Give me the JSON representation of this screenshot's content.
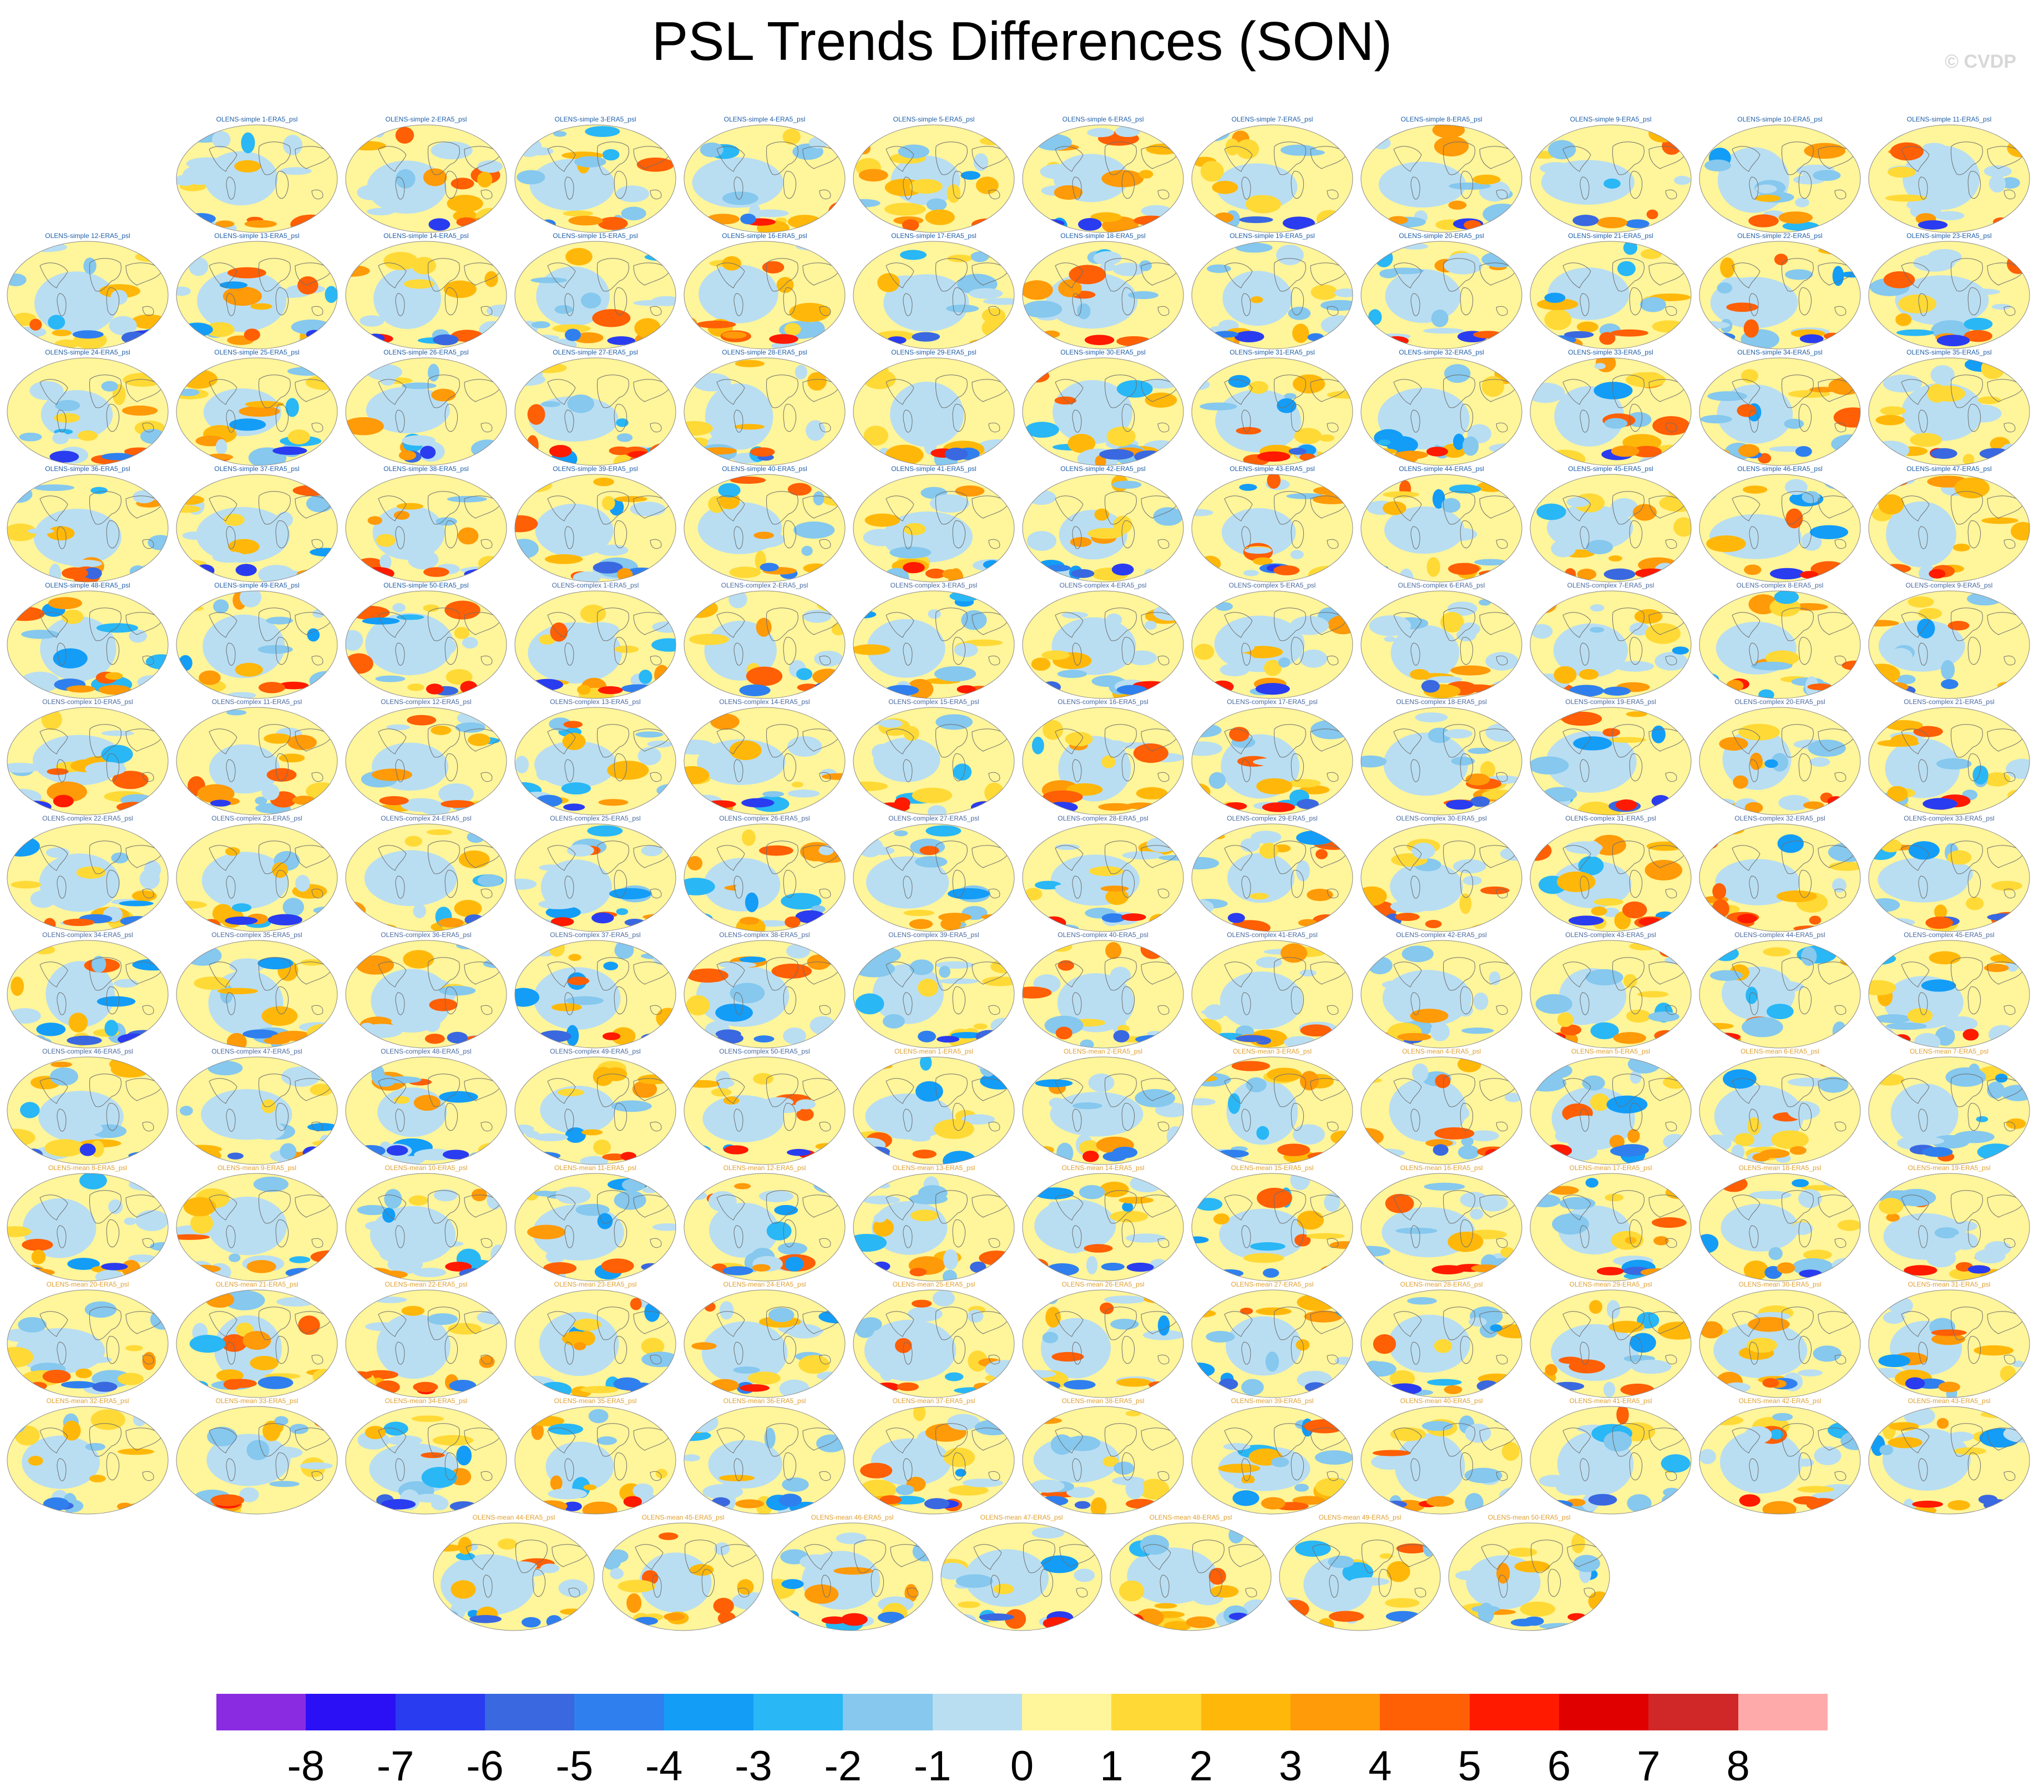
{
  "title": "PSL Trends Differences (SON)",
  "copyright": "© CVDP",
  "panel_titles": [
    "OLENS-simple 1-ERA5_psl",
    "OLENS-simple 2-ERA5_psl",
    "OLENS-simple 3-ERA5_psl",
    "OLENS-simple 4-ERA5_psl",
    "OLENS-simple 5-ERA5_psl",
    "OLENS-simple 6-ERA5_psl",
    "OLENS-simple 7-ERA5_psl",
    "OLENS-simple 8-ERA5_psl",
    "OLENS-simple 9-ERA5_psl",
    "OLENS-simple 10-ERA5_psl",
    "OLENS-simple 11-ERA5_psl",
    "OLENS-simple 12-ERA5_psl",
    "OLENS-simple 13-ERA5_psl",
    "OLENS-simple 14-ERA5_psl",
    "OLENS-simple 15-ERA5_psl",
    "OLENS-simple 16-ERA5_psl",
    "OLENS-simple 17-ERA5_psl",
    "OLENS-simple 18-ERA5_psl",
    "OLENS-simple 19-ERA5_psl",
    "OLENS-simple 20-ERA5_psl",
    "OLENS-simple 21-ERA5_psl",
    "OLENS-simple 22-ERA5_psl",
    "OLENS-simple 23-ERA5_psl",
    "OLENS-simple 24-ERA5_psl",
    "OLENS-simple 25-ERA5_psl",
    "OLENS-simple 26-ERA5_psl",
    "OLENS-simple 27-ERA5_psl",
    "OLENS-simple 28-ERA5_psl",
    "OLENS-simple 29-ERA5_psl",
    "OLENS-simple 30-ERA5_psl",
    "OLENS-simple 31-ERA5_psl",
    "OLENS-simple 32-ERA5_psl",
    "OLENS-simple 33-ERA5_psl",
    "OLENS-simple 34-ERA5_psl",
    "OLENS-simple 35-ERA5_psl",
    "OLENS-simple 36-ERA5_psl",
    "OLENS-simple 37-ERA5_psl",
    "OLENS-simple 38-ERA5_psl",
    "OLENS-simple 39-ERA5_psl",
    "OLENS-simple 40-ERA5_psl",
    "OLENS-simple 41-ERA5_psl",
    "OLENS-simple 42-ERA5_psl",
    "OLENS-simple 43-ERA5_psl",
    "OLENS-simple 44-ERA5_psl",
    "OLENS-simple 45-ERA5_psl",
    "OLENS-simple 46-ERA5_psl",
    "OLENS-simple 47-ERA5_psl",
    "OLENS-simple 48-ERA5_psl",
    "OLENS-simple 49-ERA5_psl",
    "OLENS-simple 50-ERA5_psl",
    "OLENS-complex 1-ERA5_psl",
    "OLENS-complex 2-ERA5_psl",
    "OLENS-complex 3-ERA5_psl",
    "OLENS-complex 4-ERA5_psl",
    "OLENS-complex 5-ERA5_psl",
    "OLENS-complex 6-ERA5_psl",
    "OLENS-complex 7-ERA5_psl",
    "OLENS-complex 8-ERA5_psl",
    "OLENS-complex 9-ERA5_psl",
    "OLENS-complex 10-ERA5_psl",
    "OLENS-complex 11-ERA5_psl",
    "OLENS-complex 12-ERA5_psl",
    "OLENS-complex 13-ERA5_psl",
    "OLENS-complex 14-ERA5_psl",
    "OLENS-complex 15-ERA5_psl",
    "OLENS-complex 16-ERA5_psl",
    "OLENS-complex 17-ERA5_psl",
    "OLENS-complex 18-ERA5_psl",
    "OLENS-complex 19-ERA5_psl",
    "OLENS-complex 20-ERA5_psl",
    "OLENS-complex 21-ERA5_psl",
    "OLENS-complex 22-ERA5_psl",
    "OLENS-complex 23-ERA5_psl",
    "OLENS-complex 24-ERA5_psl",
    "OLENS-complex 25-ERA5_psl",
    "OLENS-complex 26-ERA5_psl",
    "OLENS-complex 27-ERA5_psl",
    "OLENS-complex 28-ERA5_psl",
    "OLENS-complex 29-ERA5_psl",
    "OLENS-complex 30-ERA5_psl",
    "OLENS-complex 31-ERA5_psl",
    "OLENS-complex 32-ERA5_psl",
    "OLENS-complex 33-ERA5_psl",
    "OLENS-complex 34-ERA5_psl",
    "OLENS-complex 35-ERA5_psl",
    "OLENS-complex 36-ERA5_psl",
    "OLENS-complex 37-ERA5_psl",
    "OLENS-complex 38-ERA5_psl",
    "OLENS-complex 39-ERA5_psl",
    "OLENS-complex 40-ERA5_psl",
    "OLENS-complex 41-ERA5_psl",
    "OLENS-complex 42-ERA5_psl",
    "OLENS-complex 43-ERA5_psl",
    "OLENS-complex 44-ERA5_psl",
    "OLENS-complex 45-ERA5_psl",
    "OLENS-complex 46-ERA5_psl",
    "OLENS-complex 47-ERA5_psl",
    "OLENS-complex 48-ERA5_psl",
    "OLENS-complex 49-ERA5_psl",
    "OLENS-complex 50-ERA5_psl",
    "OLENS-mean 1-ERA5_psl",
    "OLENS-mean 2-ERA5_psl",
    "OLENS-mean 3-ERA5_psl",
    "OLENS-mean 4-ERA5_psl",
    "OLENS-mean 5-ERA5_psl",
    "OLENS-mean 6-ERA5_psl",
    "OLENS-mean 7-ERA5_psl",
    "OLENS-mean 8-ERA5_psl",
    "OLENS-mean 9-ERA5_psl",
    "OLENS-mean 10-ERA5_psl",
    "OLENS-mean 11-ERA5_psl",
    "OLENS-mean 12-ERA5_psl",
    "OLENS-mean 13-ERA5_psl",
    "OLENS-mean 14-ERA5_psl",
    "OLENS-mean 15-ERA5_psl",
    "OLENS-mean 16-ERA5_psl",
    "OLENS-mean 17-ERA5_psl",
    "OLENS-mean 18-ERA5_psl",
    "OLENS-mean 19-ERA5_psl",
    "OLENS-mean 20-ERA5_psl",
    "OLENS-mean 21-ERA5_psl",
    "OLENS-mean 22-ERA5_psl",
    "OLENS-mean 23-ERA5_psl",
    "OLENS-mean 24-ERA5_psl",
    "OLENS-mean 25-ERA5_psl",
    "OLENS-mean 26-ERA5_psl",
    "OLENS-mean 27-ERA5_psl",
    "OLENS-mean 28-ERA5_psl",
    "OLENS-mean 29-ERA5_psl",
    "OLENS-mean 30-ERA5_psl",
    "OLENS-mean 31-ERA5_psl",
    "OLENS-mean 32-ERA5_psl",
    "OLENS-mean 33-ERA5_psl",
    "OLENS-mean 34-ERA5_psl",
    "OLENS-mean 35-ERA5_psl",
    "OLENS-mean 36-ERA5_psl",
    "OLENS-mean 37-ERA5_psl",
    "OLENS-mean 38-ERA5_psl",
    "OLENS-mean 39-ERA5_psl",
    "OLENS-mean 40-ERA5_psl",
    "OLENS-mean 41-ERA5_psl",
    "OLENS-mean 42-ERA5_psl",
    "OLENS-mean 43-ERA5_psl",
    "OLENS-mean 44-ERA5_psl",
    "OLENS-mean 45-ERA5_psl",
    "OLENS-mean 46-ERA5_psl",
    "OLENS-mean 47-ERA5_psl",
    "OLENS-mean 48-ERA5_psl",
    "OLENS-mean 49-ERA5_psl",
    "OLENS-mean 50-ERA5_psl"
  ],
  "colorbar": {
    "labels": [
      "-8",
      "-7",
      "-6",
      "-5",
      "-4",
      "-3",
      "-2",
      "-1",
      "0",
      "1",
      "2",
      "3",
      "4",
      "5",
      "6",
      "7",
      "8"
    ],
    "colors": [
      "#8a2be2",
      "#2b10f5",
      "#2a3cf0",
      "#3a68e0",
      "#2f80ee",
      "#139df7",
      "#29b7f6",
      "#86c8ee",
      "#b9def2",
      "#fff59a",
      "#ffd936",
      "#ffb80a",
      "#ff9a08",
      "#ff5f05",
      "#ff1a00",
      "#e00000",
      "#d02828",
      "#ffaaaa"
    ]
  }
}
